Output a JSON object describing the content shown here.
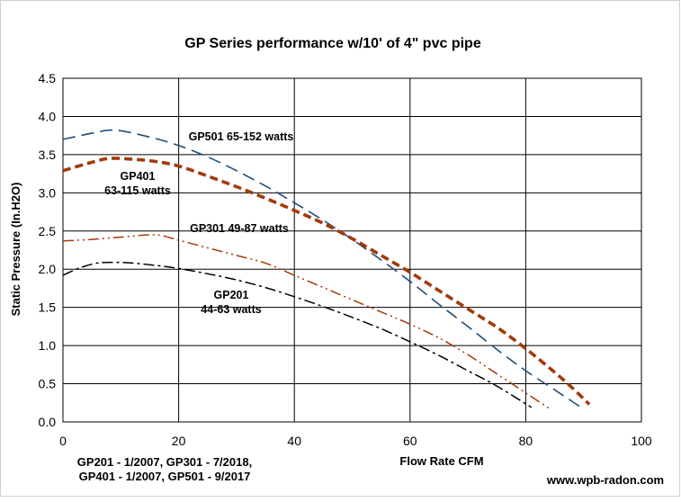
{
  "chart_data": {
    "type": "line",
    "title": "GP Series performance  w/10' of 4\" pvc pipe",
    "xlabel": "Flow Rate CFM",
    "ylabel": "Static Pressure (In.H2O)",
    "xlim": [
      0,
      100
    ],
    "ylim": [
      0,
      4.5
    ],
    "xticks": [
      "0",
      "20",
      "40",
      "60",
      "80",
      "100"
    ],
    "yticks": [
      "0.0",
      "0.5",
      "1.0",
      "1.5",
      "2.0",
      "2.5",
      "3.0",
      "3.5",
      "4.0",
      "4.5"
    ],
    "grid": true,
    "series": [
      {
        "name": "GP501",
        "label_lines": [
          "GP501 65-152  watts"
        ],
        "color": "#1f4e79",
        "dash": "dashed",
        "x": [
          0,
          5,
          9,
          15,
          20,
          25,
          30,
          35,
          40,
          45,
          50,
          55,
          60,
          65,
          70,
          75,
          80,
          85,
          88,
          90
        ],
        "y": [
          3.7,
          3.78,
          3.82,
          3.73,
          3.62,
          3.47,
          3.29,
          3.09,
          2.87,
          2.64,
          2.39,
          2.12,
          1.84,
          1.54,
          1.25,
          0.95,
          0.67,
          0.42,
          0.27,
          0.17
        ]
      },
      {
        "name": "GP401",
        "label_lines": [
          "GP401",
          "63-115 watts"
        ],
        "color": "#a33a0a",
        "dash": "thick-dashed",
        "x": [
          0,
          5,
          8,
          12,
          16,
          20,
          25,
          30,
          35,
          40,
          45,
          50,
          55,
          60,
          65,
          70,
          75,
          80,
          85,
          88,
          91
        ],
        "y": [
          3.29,
          3.4,
          3.45,
          3.44,
          3.41,
          3.35,
          3.22,
          3.08,
          2.93,
          2.77,
          2.6,
          2.4,
          2.18,
          1.96,
          1.72,
          1.48,
          1.24,
          0.96,
          0.65,
          0.45,
          0.23
        ]
      },
      {
        "name": "GP301",
        "label_lines": [
          "GP301 49-87  watts"
        ],
        "color": "#a33a0a",
        "dash": "dash-dot-dot",
        "x": [
          0,
          5,
          10,
          16,
          20,
          25,
          30,
          35,
          40,
          45,
          50,
          55,
          60,
          65,
          70,
          75,
          80,
          84
        ],
        "y": [
          2.37,
          2.39,
          2.42,
          2.45,
          2.38,
          2.28,
          2.18,
          2.08,
          1.92,
          1.76,
          1.6,
          1.44,
          1.28,
          1.1,
          0.88,
          0.63,
          0.38,
          0.18
        ]
      },
      {
        "name": "GP201",
        "label_lines": [
          "GP201",
          "44-63 watts"
        ],
        "color": "#000000",
        "dash": "dash-dot",
        "x": [
          0,
          3,
          6,
          9,
          12,
          16,
          20,
          25,
          30,
          35,
          40,
          45,
          50,
          55,
          60,
          65,
          70,
          75,
          81
        ],
        "y": [
          1.92,
          2.02,
          2.08,
          2.09,
          2.08,
          2.05,
          2.01,
          1.94,
          1.86,
          1.76,
          1.64,
          1.51,
          1.37,
          1.22,
          1.05,
          0.87,
          0.67,
          0.47,
          0.19
        ]
      }
    ],
    "annotations": {
      "dates": [
        "GP201 - 1/2007,  GP301 - 7/2018,",
        "GP401 - 1/2007,  GP501 - 9/2017"
      ],
      "source": "www.wpb-radon.com"
    }
  }
}
